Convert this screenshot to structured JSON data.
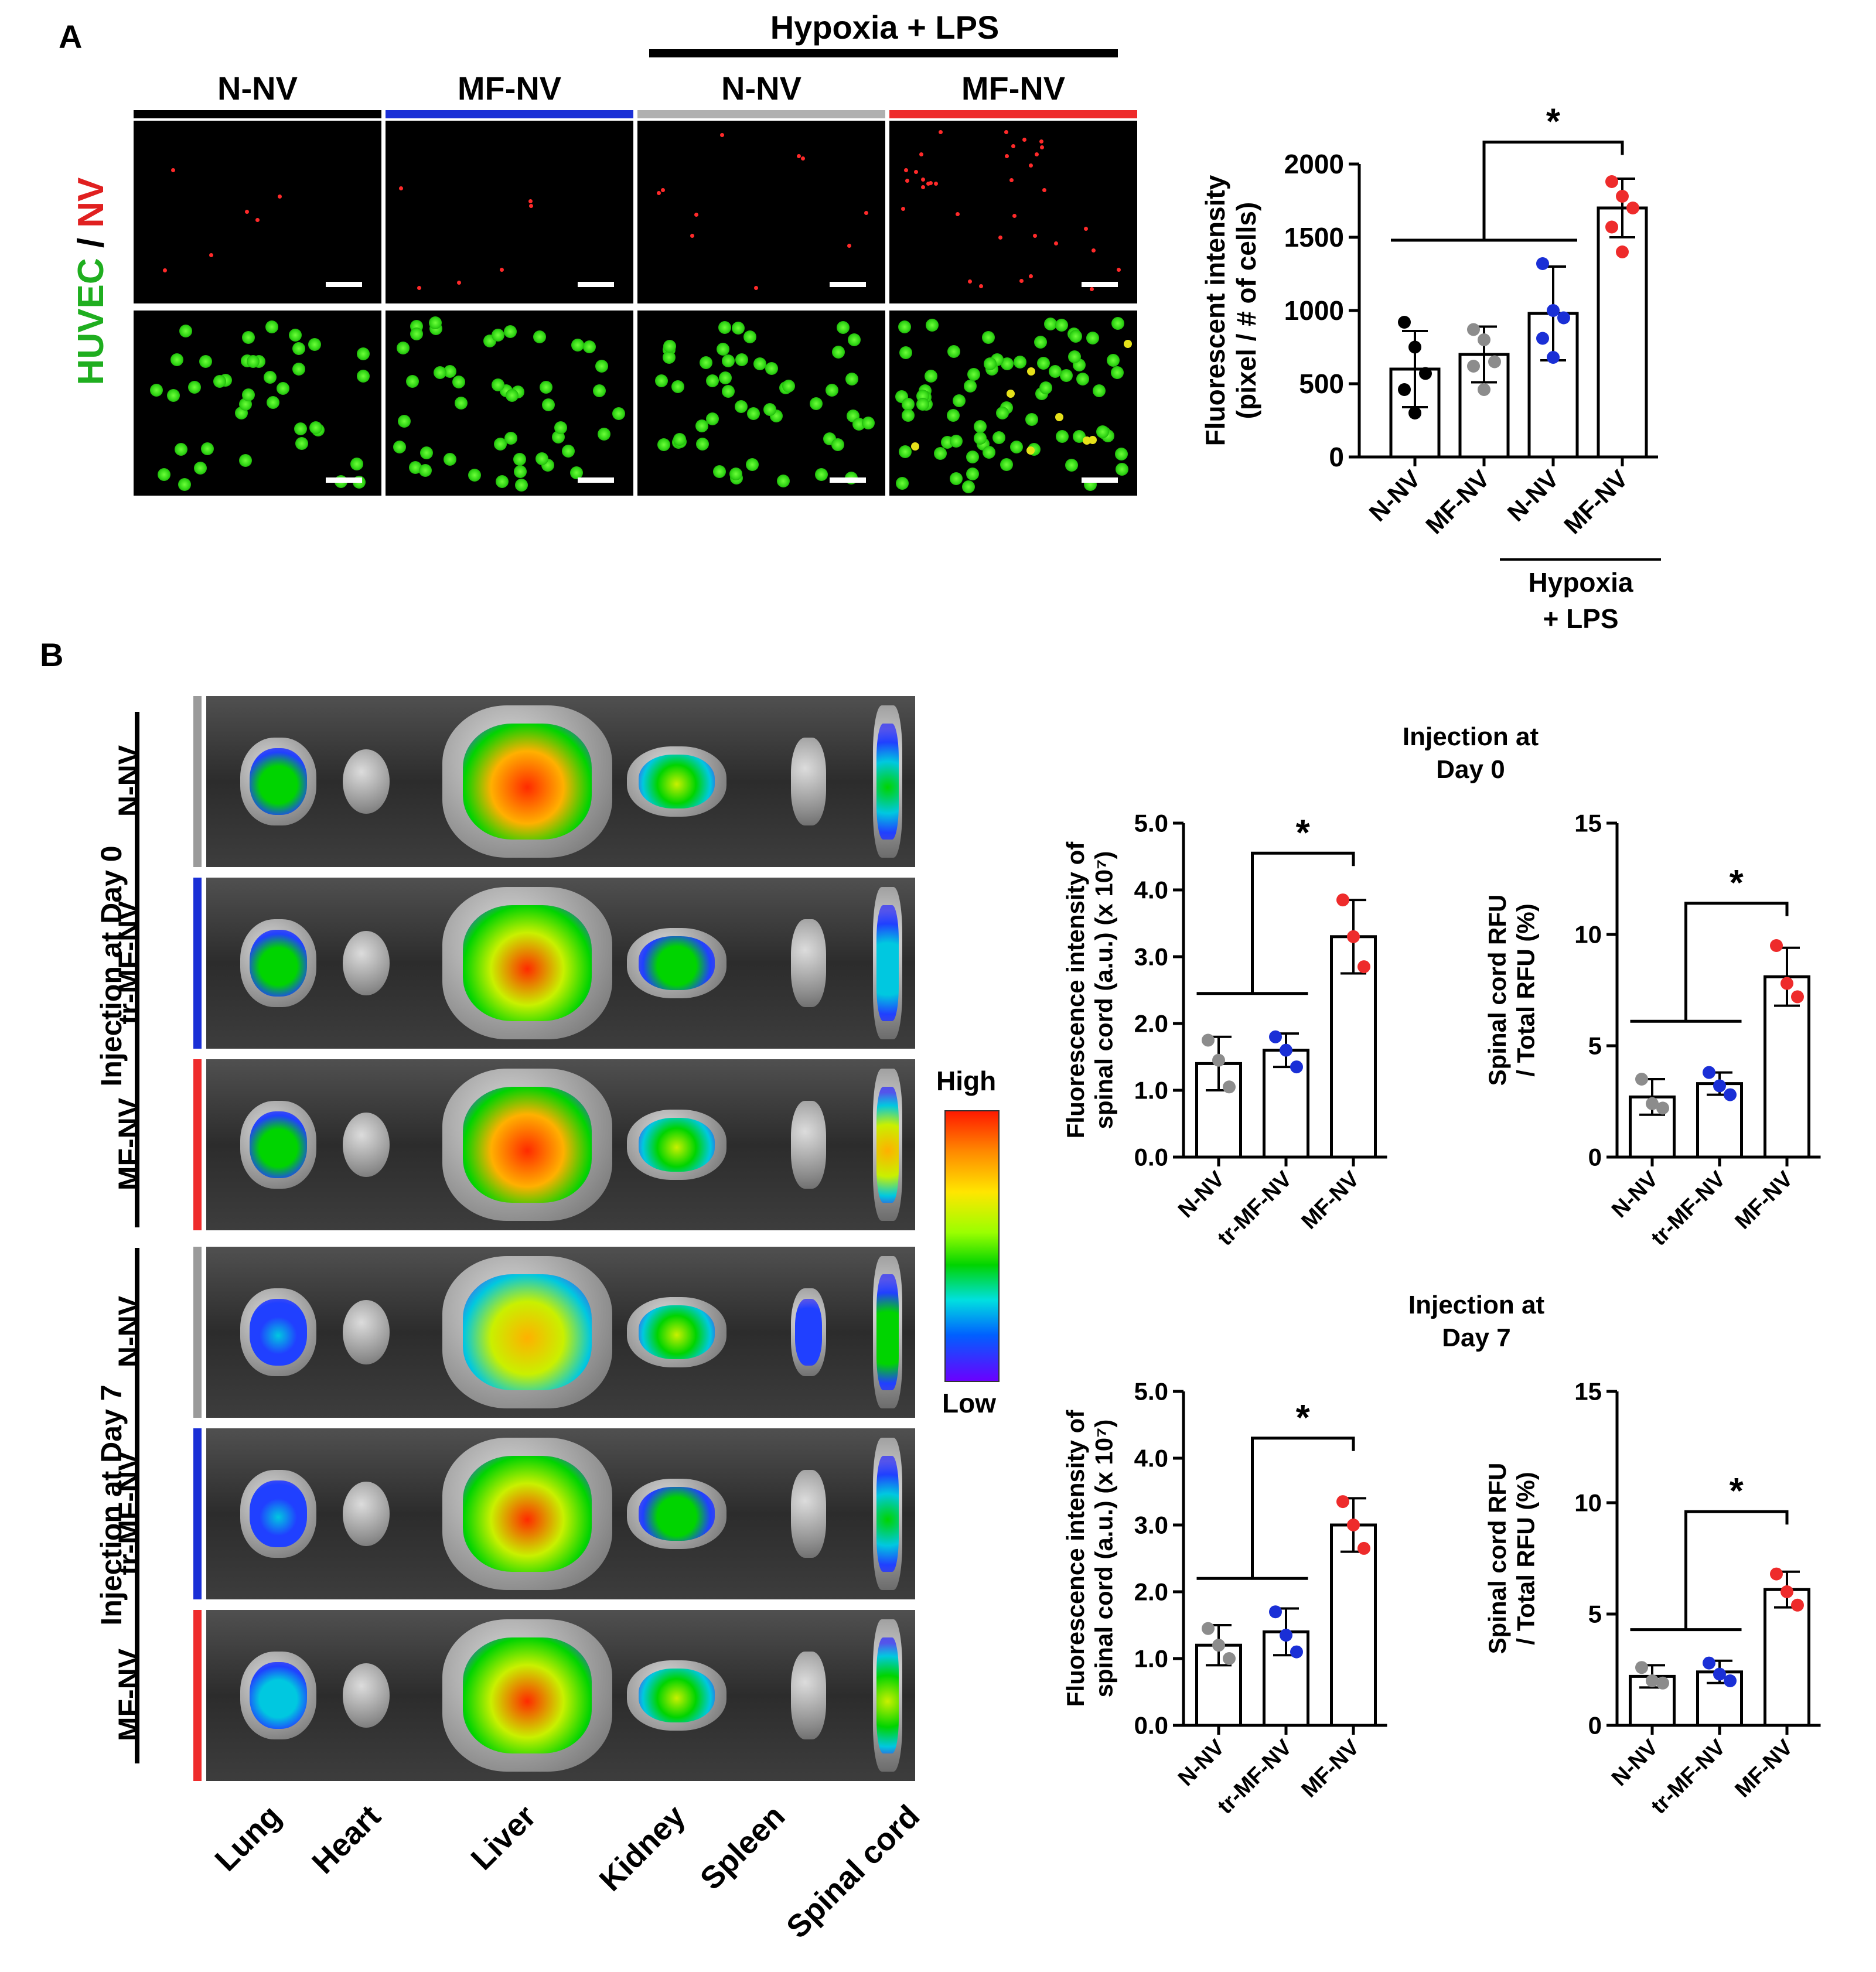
{
  "panel_a": {
    "letter": "A",
    "group_header": "Hypoxia + LPS",
    "columns": [
      {
        "label": "N-NV",
        "color": "#000000"
      },
      {
        "label": "MF-NV",
        "color": "#1a2fd6"
      },
      {
        "label": "N-NV",
        "color": "#b0b0b0"
      },
      {
        "label": "MF-NV",
        "color": "#ee2b2b"
      }
    ],
    "row_label_huvec": "HUVEC",
    "row_label_sep": " / ",
    "row_label_nv": "NV"
  },
  "panel_b": {
    "letter": "B",
    "group_day0": "Injection at Day 0",
    "group_day7": "Injection at Day 7",
    "rows": [
      {
        "label": "N-NV",
        "color": "#9a9a9a"
      },
      {
        "label": "tr-MF-NV",
        "color": "#1a2fd6"
      },
      {
        "label": "MF-NV",
        "color": "#ee2b2b"
      },
      {
        "label": "N-NV",
        "color": "#9a9a9a"
      },
      {
        "label": "tr-MF-NV",
        "color": "#1a2fd6"
      },
      {
        "label": "MF-NV",
        "color": "#ee2b2b"
      }
    ],
    "organs": [
      "Lung",
      "Heart",
      "Liver",
      "Kidney",
      "Spleen",
      "Spinal cord"
    ],
    "scale_high": "High",
    "scale_low": "Low",
    "title_day0": "Injection at\nDay 0",
    "title_day7": "Injection at\nDay 7"
  },
  "chart_data": [
    {
      "type": "bar",
      "panel": "A",
      "categories": [
        "N-NV",
        "MF-NV",
        "N-NV",
        "MF-NV"
      ],
      "category_group": "Hypoxia\n+ LPS",
      "values": [
        600,
        700,
        980,
        1700
      ],
      "errors": [
        260,
        190,
        320,
        200
      ],
      "points": [
        [
          920,
          750,
          570,
          460,
          300
        ],
        [
          870,
          800,
          650,
          620,
          460
        ],
        [
          1320,
          1000,
          950,
          810,
          680
        ],
        [
          1880,
          1780,
          1700,
          1570,
          1400
        ]
      ],
      "point_colors": [
        "#000000",
        "#8c8c8c",
        "#1a2fd6",
        "#ee2b2b"
      ],
      "ylabel": "Fluorescent intensity\n(pixel / # of cells)",
      "ylim": [
        0,
        2000
      ],
      "yticks": [
        0,
        500,
        1000,
        1500,
        2000
      ],
      "significance": "*"
    },
    {
      "type": "bar",
      "panel": "B-day0-left",
      "categories": [
        "N-NV",
        "tr-MF-NV",
        "MF-NV"
      ],
      "values": [
        1.4,
        1.6,
        3.3
      ],
      "errors": [
        0.4,
        0.25,
        0.55
      ],
      "points": [
        [
          1.75,
          1.45,
          1.05
        ],
        [
          1.8,
          1.6,
          1.35
        ],
        [
          3.85,
          3.3,
          2.85
        ]
      ],
      "point_colors": [
        "#8c8c8c",
        "#1a2fd6",
        "#ee2b2b"
      ],
      "ylabel": "Fluorescence intensity of\nspinal cord (a.u.) (x 10⁷)",
      "ylim": [
        0,
        5
      ],
      "yticks": [
        "0.0",
        "1.0",
        "2.0",
        "3.0",
        "4.0",
        "5.0"
      ],
      "significance": "*"
    },
    {
      "type": "bar",
      "panel": "B-day0-right",
      "categories": [
        "N-NV",
        "tr-MF-NV",
        "MF-NV"
      ],
      "values": [
        2.7,
        3.3,
        8.1
      ],
      "errors": [
        0.8,
        0.5,
        1.3
      ],
      "points": [
        [
          3.5,
          2.4,
          2.2
        ],
        [
          3.8,
          3.2,
          2.8
        ],
        [
          9.5,
          7.8,
          7.2
        ]
      ],
      "point_colors": [
        "#8c8c8c",
        "#1a2fd6",
        "#ee2b2b"
      ],
      "ylabel": "Spinal cord RFU\n/ Total RFU (%)",
      "ylim": [
        0,
        15
      ],
      "yticks": [
        "0",
        "5",
        "10",
        "15"
      ],
      "significance": "*"
    },
    {
      "type": "bar",
      "panel": "B-day7-left",
      "categories": [
        "N-NV",
        "tr-MF-NV",
        "MF-NV"
      ],
      "values": [
        1.2,
        1.4,
        3.0
      ],
      "errors": [
        0.3,
        0.35,
        0.4
      ],
      "points": [
        [
          1.45,
          1.2,
          1.0
        ],
        [
          1.7,
          1.35,
          1.1
        ],
        [
          3.35,
          3.0,
          2.65
        ]
      ],
      "point_colors": [
        "#8c8c8c",
        "#1a2fd6",
        "#ee2b2b"
      ],
      "ylabel": "Fluorescence intensity of\nspinal cord (a.u.) (x 10⁷)",
      "ylim": [
        0,
        5
      ],
      "yticks": [
        "0.0",
        "1.0",
        "2.0",
        "3.0",
        "4.0",
        "5.0"
      ],
      "significance": "*"
    },
    {
      "type": "bar",
      "panel": "B-day7-right",
      "categories": [
        "N-NV",
        "tr-MF-NV",
        "MF-NV"
      ],
      "values": [
        2.2,
        2.4,
        6.1
      ],
      "errors": [
        0.5,
        0.5,
        0.8
      ],
      "points": [
        [
          2.6,
          2.0,
          1.9
        ],
        [
          2.8,
          2.3,
          2.0
        ],
        [
          6.8,
          6.0,
          5.4
        ]
      ],
      "point_colors": [
        "#8c8c8c",
        "#1a2fd6",
        "#ee2b2b"
      ],
      "ylabel": "Spinal cord RFU\n/ Total RFU (%)",
      "ylim": [
        0,
        15
      ],
      "yticks": [
        "0",
        "5",
        "10",
        "15"
      ],
      "significance": "*"
    }
  ]
}
